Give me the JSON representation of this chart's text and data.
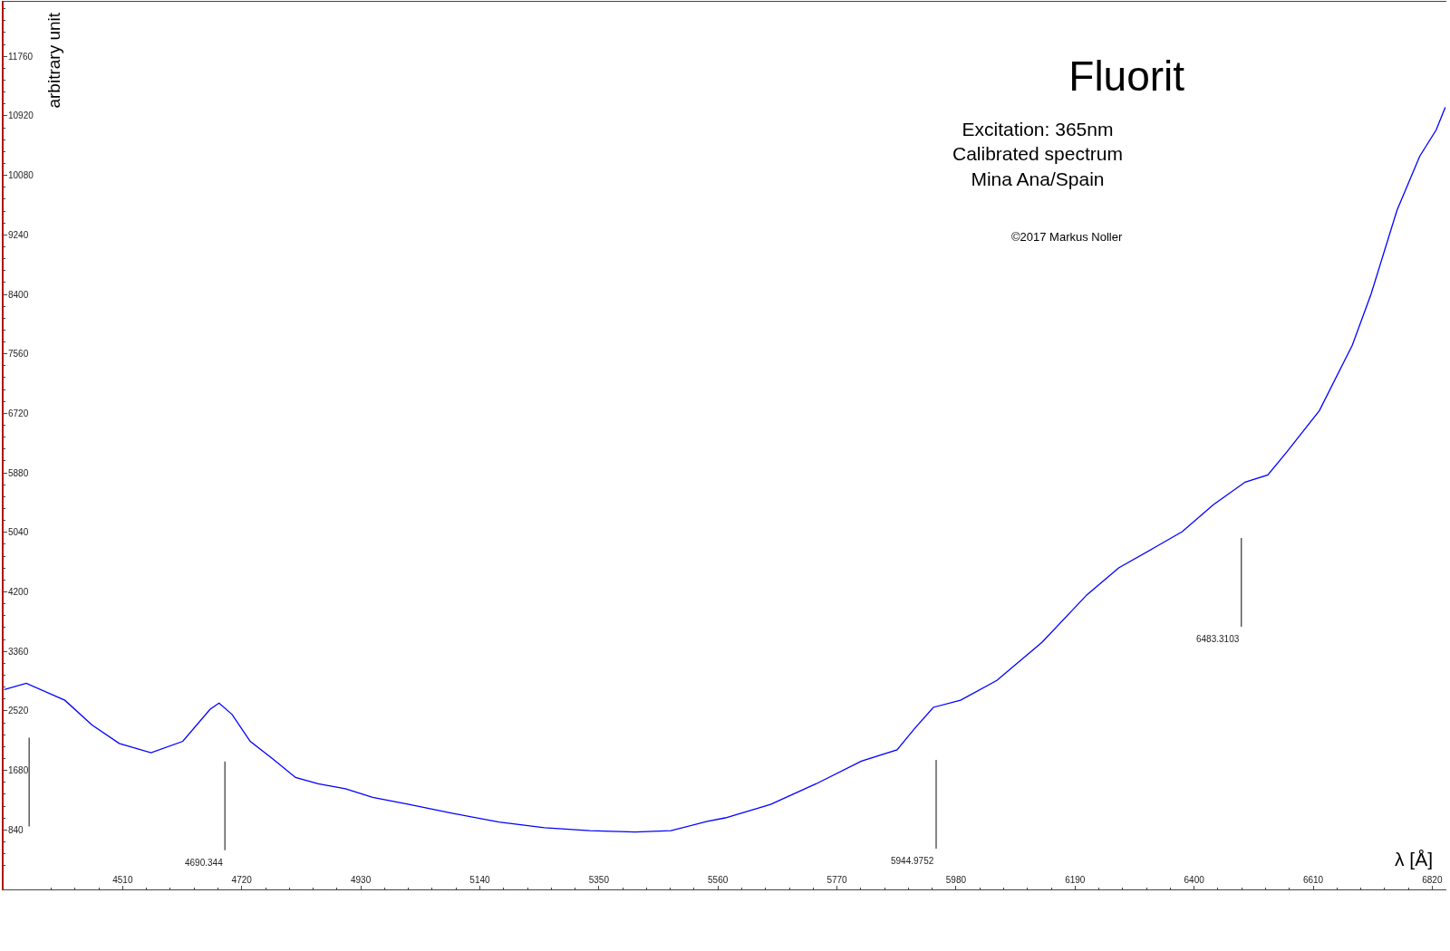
{
  "chart_data": {
    "type": "line",
    "title": "Fluorit",
    "subtitle": "Excitation: 365nm\nCalibrated spectrum\nMina Ana/Spain",
    "xlabel": "λ [Å]",
    "ylabel": "arbitrary unit",
    "x": [
      4301,
      4340,
      4408,
      4456,
      4504,
      4560,
      4616,
      4664,
      4680,
      4703,
      4735,
      4775,
      4815,
      4855,
      4903,
      4951,
      5015,
      5095,
      5174,
      5254,
      5334,
      5414,
      5477,
      5541,
      5573,
      5653,
      5733,
      5813,
      5876,
      5908,
      5940,
      5988,
      6052,
      6132,
      6211,
      6267,
      6331,
      6379,
      6434,
      6490,
      6530,
      6564,
      6621,
      6679,
      6712,
      6758,
      6798,
      6827,
      6843
    ],
    "series": [
      {
        "color": "#0000ff",
        "values": [
          2820,
          2910,
          2670,
          2320,
          2060,
          1930,
          2090,
          2540,
          2630,
          2470,
          2090,
          1840,
          1580,
          1490,
          1420,
          1300,
          1200,
          1070,
          950,
          870,
          830,
          810,
          830,
          960,
          1010,
          1200,
          1490,
          1810,
          1970,
          2280,
          2570,
          2670,
          2950,
          3490,
          4160,
          4540,
          4830,
          5050,
          5430,
          5750,
          5850,
          6180,
          6760,
          7680,
          8400,
          9590,
          10350,
          10720,
          11040
        ]
      }
    ],
    "ref_lines": [
      {
        "axis": "x",
        "value": 4345,
        "label": null
      },
      {
        "axis": "x",
        "value": 4690.344,
        "label": "4690.344"
      },
      {
        "axis": "x",
        "value": 5944.9752,
        "label": "5944.9752"
      },
      {
        "axis": "x",
        "value": 6483.3103,
        "label": "6483.3103"
      }
    ],
    "annotations": [
      "©2017 Markus Noller"
    ],
    "xlim": [
      4300,
      6845
    ],
    "ylim": [
      0,
      12530
    ],
    "xticks": [
      4510,
      4720,
      4930,
      5140,
      5350,
      5560,
      5770,
      5980,
      6190,
      6400,
      6610,
      6820
    ],
    "yticks": [
      840,
      1680,
      2520,
      3360,
      4200,
      5040,
      5880,
      6720,
      7560,
      8400,
      9240,
      10080,
      10920,
      11760
    ],
    "marker": "none",
    "line_style": "solid"
  }
}
